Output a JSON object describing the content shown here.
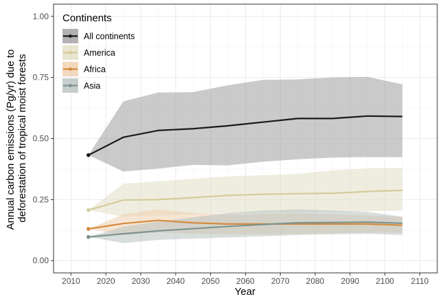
{
  "chart_data": {
    "type": "line",
    "xlabel": "Year",
    "ylabel_lines": [
      "Annual carbon emissions (Pg/yr) due to",
      "deforestation of tropical moist forests"
    ],
    "xlim": [
      2005,
      2115
    ],
    "ylim": [
      -0.05,
      1.05
    ],
    "x_ticks": [
      2010,
      2020,
      2030,
      2040,
      2050,
      2060,
      2070,
      2080,
      2090,
      2100,
      2110
    ],
    "x_tick_labels": [
      "2010",
      "2020",
      "2030",
      "2040",
      "2050",
      "2060",
      "2070",
      "2080",
      "2090",
      "2100",
      "2110"
    ],
    "y_ticks": [
      0,
      0.25,
      0.5,
      0.75,
      1.0
    ],
    "y_tick_labels": [
      "0.00",
      "0.25",
      "0.50",
      "0.75",
      "1.00"
    ],
    "grid": true,
    "legend": {
      "title": "Continents",
      "position": "top-left"
    },
    "x": [
      2015,
      2025,
      2035,
      2045,
      2055,
      2065,
      2075,
      2085,
      2095,
      2105
    ],
    "series": [
      {
        "name": "All continents",
        "color": "#1a1a1a",
        "band_color": "#a09ea1",
        "values": [
          0.432,
          0.505,
          0.533,
          0.54,
          0.552,
          0.567,
          0.582,
          0.582,
          0.592,
          0.59
        ],
        "lower": [
          0.432,
          0.365,
          0.377,
          0.392,
          0.39,
          0.405,
          0.415,
          0.422,
          0.424,
          0.424
        ],
        "upper": [
          0.432,
          0.652,
          0.688,
          0.69,
          0.718,
          0.74,
          0.742,
          0.75,
          0.752,
          0.722
        ]
      },
      {
        "name": "America",
        "color": "#d4cc9a",
        "band_color": "#e2dec4",
        "values": [
          0.207,
          0.248,
          0.25,
          0.258,
          0.267,
          0.272,
          0.274,
          0.276,
          0.283,
          0.288
        ],
        "lower": [
          0.207,
          0.18,
          0.185,
          0.19,
          0.195,
          0.196,
          0.198,
          0.2,
          0.202,
          0.205
        ],
        "upper": [
          0.207,
          0.315,
          0.325,
          0.335,
          0.345,
          0.35,
          0.355,
          0.37,
          0.378,
          0.38
        ]
      },
      {
        "name": "Africa",
        "color": "#d58a3e",
        "band_color": "#f0cfae",
        "values": [
          0.13,
          0.152,
          0.165,
          0.155,
          0.15,
          0.15,
          0.15,
          0.15,
          0.15,
          0.145
        ],
        "lower": [
          0.13,
          0.105,
          0.115,
          0.11,
          0.108,
          0.108,
          0.11,
          0.112,
          0.115,
          0.115
        ],
        "upper": [
          0.13,
          0.19,
          0.21,
          0.195,
          0.19,
          0.192,
          0.195,
          0.19,
          0.185,
          0.18
        ]
      },
      {
        "name": "Asia",
        "color": "#7d9490",
        "band_color": "#b8c3c0",
        "values": [
          0.097,
          0.11,
          0.122,
          0.131,
          0.14,
          0.148,
          0.155,
          0.156,
          0.158,
          0.153
        ],
        "lower": [
          0.097,
          0.072,
          0.085,
          0.09,
          0.095,
          0.1,
          0.105,
          0.108,
          0.11,
          0.105
        ],
        "upper": [
          0.097,
          0.14,
          0.16,
          0.178,
          0.195,
          0.205,
          0.21,
          0.205,
          0.2,
          0.18
        ]
      }
    ]
  }
}
